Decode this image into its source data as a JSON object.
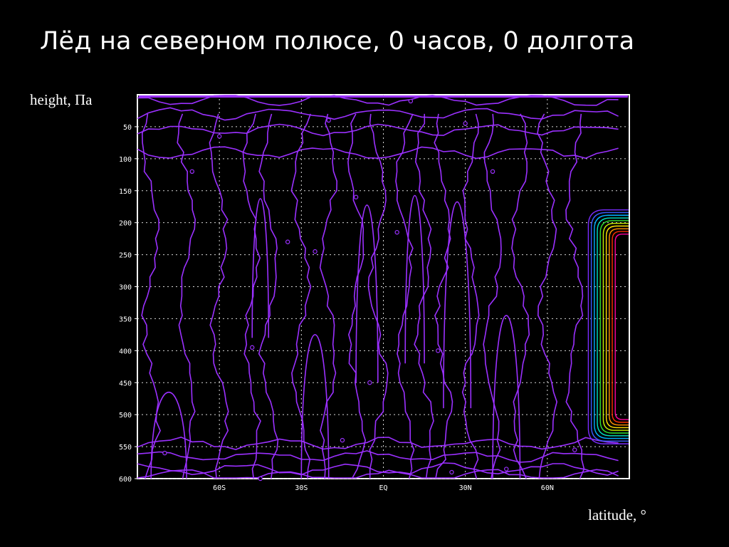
{
  "title": "Лёд на северном полюсе, 0 часов, 0 долгота",
  "ylabel": "height, Па",
  "xlabel": "latitude, °",
  "chart_data": {
    "type": "contour",
    "x_tick_labels": [
      "60S",
      "30S",
      "EQ",
      "30N",
      "60N"
    ],
    "x_ticks": [
      -60,
      -30,
      0,
      30,
      60
    ],
    "y_tick_labels": [
      "50",
      "100",
      "150",
      "200",
      "250",
      "300",
      "350",
      "400",
      "450",
      "500",
      "550",
      "600"
    ],
    "y_ticks": [
      50,
      100,
      150,
      200,
      250,
      300,
      350,
      400,
      450,
      500,
      550,
      600
    ],
    "xlim": [
      -90,
      90
    ],
    "ylim": [
      0,
      600
    ],
    "y_inverted": true,
    "grid": true,
    "contour_label": "0",
    "background_contour_color": "#9b30ff",
    "ice_region": {
      "lat_range": [
        75,
        90
      ],
      "height_range": [
        180,
        530
      ],
      "colors": [
        "#7b2cff",
        "#3a5cff",
        "#00b0ff",
        "#00e0c0",
        "#30e030",
        "#c8f000",
        "#ffe000",
        "#ff9000",
        "#ff3000",
        "#ff00a0"
      ]
    }
  }
}
